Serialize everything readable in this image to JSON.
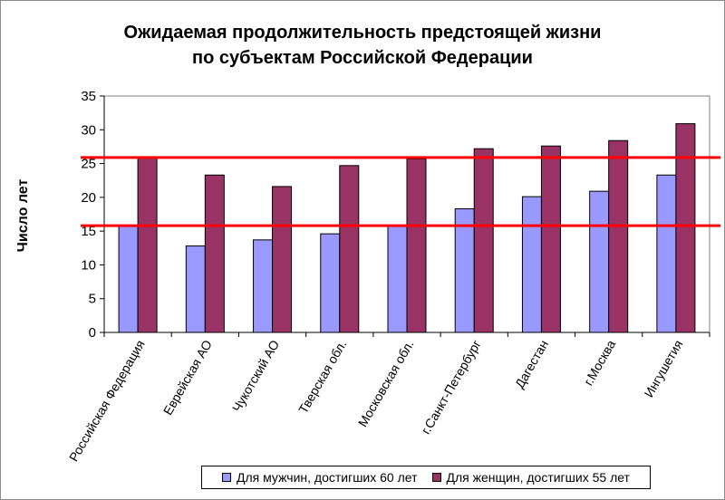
{
  "title_line1": "Ожидаемая продолжительность  предстоящей жизни",
  "title_line2": "по субъектам Российской Федерации",
  "colors": {
    "men": "#9999ff",
    "women": "#993366",
    "threshold": "#ff0000",
    "plot_bg": "#ffffff",
    "axis": "#000000"
  },
  "chart_data": {
    "type": "bar",
    "title": "Ожидаемая продолжительность  предстоящей жизни по субъектам Российской Федерации",
    "xlabel": "",
    "ylabel": "Число лет",
    "ylim": [
      0,
      35
    ],
    "yticks": [
      0,
      5,
      10,
      15,
      20,
      25,
      30,
      35
    ],
    "grid": false,
    "legend_position": "bottom",
    "categories": [
      "Российская Федерация",
      "Еврейская АО",
      "Чукотский АО",
      "Тверская обл.",
      "Московская обл.",
      "г.Санкт-Петербург",
      "Дагестан",
      "г.Москва",
      "Ингушетия"
    ],
    "series": [
      {
        "name": "Для мужчин, достигших 60 лет",
        "values": [
          15.8,
          12.8,
          13.7,
          14.6,
          15.8,
          18.3,
          20.1,
          20.9,
          23.3
        ]
      },
      {
        "name": "Для женщин, достигших 55 лет",
        "values": [
          25.9,
          23.3,
          21.6,
          24.7,
          25.7,
          27.2,
          27.6,
          28.4,
          30.9
        ]
      }
    ],
    "reference_lines": [
      15.8,
      25.9
    ]
  }
}
